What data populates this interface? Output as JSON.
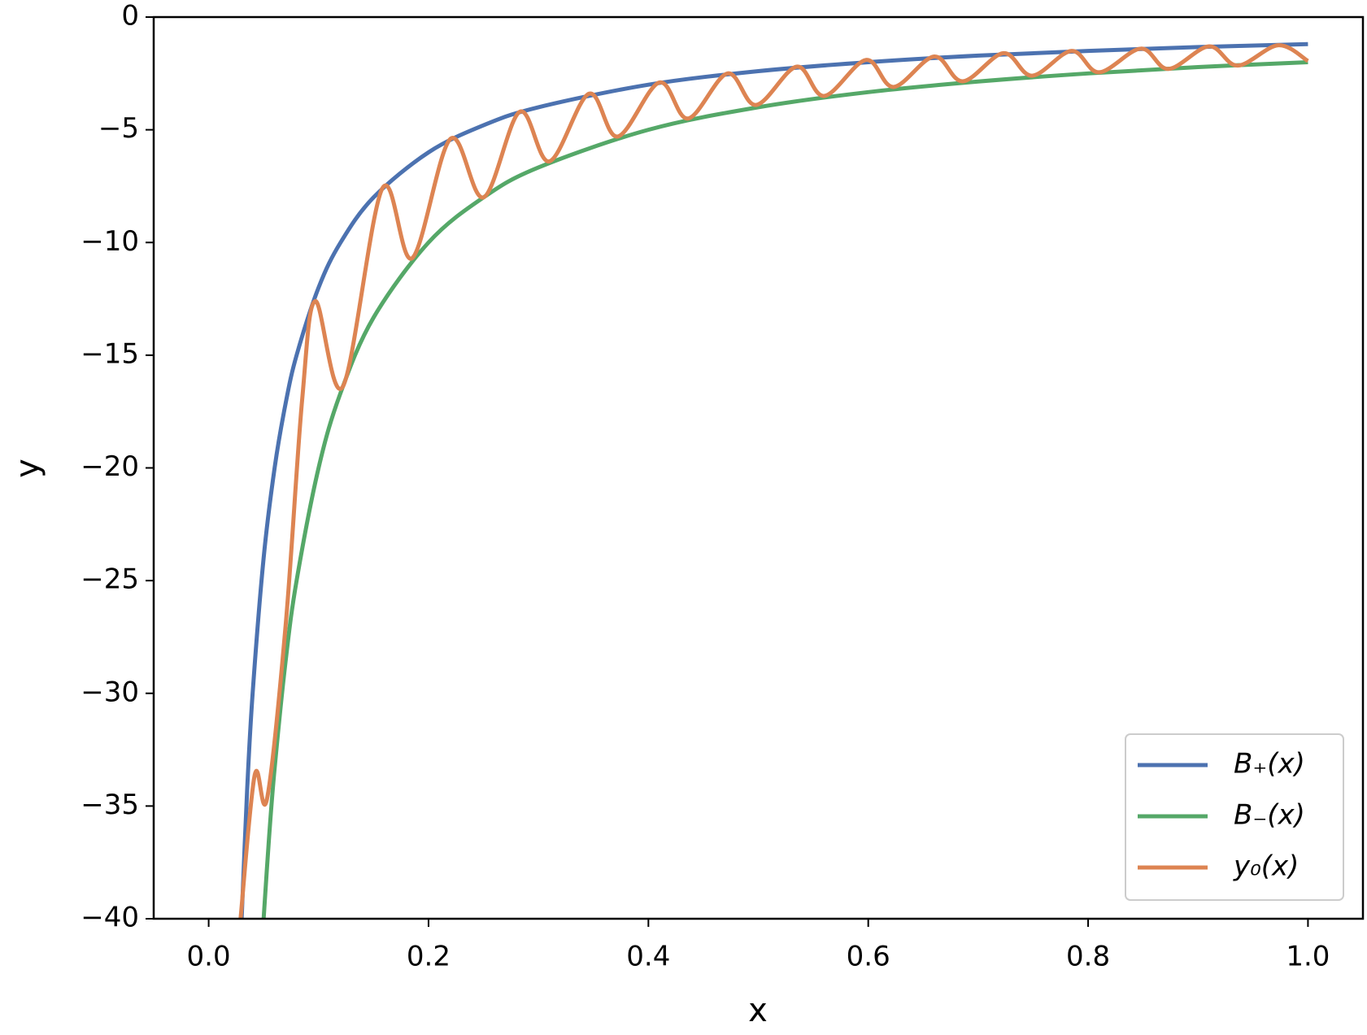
{
  "chart_data": {
    "type": "line",
    "xlabel": "x",
    "ylabel": "y",
    "xlim": [
      -0.05,
      1.05
    ],
    "ylim": [
      -40,
      0
    ],
    "xticks": [
      {
        "value": 0,
        "label": "0.0"
      },
      0.2,
      0.4,
      0.6,
      0.8,
      {
        "value": 1,
        "label": "1.0"
      }
    ],
    "yticks": [
      {
        "value": -40,
        "label": "−40"
      },
      {
        "value": -35,
        "label": "−35"
      },
      {
        "value": -30,
        "label": "−30"
      },
      {
        "value": -25,
        "label": "−25"
      },
      {
        "value": -20,
        "label": "−20"
      },
      {
        "value": -15,
        "label": "−15"
      },
      {
        "value": -10,
        "label": "−10"
      },
      {
        "value": -5,
        "label": "−5"
      },
      0
    ],
    "legend": "lower right",
    "series": [
      {
        "name": "B₊(x)",
        "color": "#4c72b0",
        "x": [
          0.03,
          0.035,
          0.04,
          0.05,
          0.06,
          0.07,
          0.08,
          0.1,
          0.12,
          0.15,
          0.2,
          0.25,
          0.3,
          0.4,
          0.5,
          0.6,
          0.7,
          0.8,
          0.9,
          1.0
        ],
        "values": [
          -40,
          -34.29,
          -30,
          -24,
          -20,
          -17.14,
          -15,
          -12,
          -10,
          -8,
          -6,
          -4.8,
          -4,
          -3,
          -2.4,
          -2,
          -1.71,
          -1.5,
          -1.33,
          -1.2
        ]
      },
      {
        "name": "B₋(x)",
        "color": "#55a868",
        "x": [
          0.05,
          0.055,
          0.06,
          0.07,
          0.08,
          0.1,
          0.12,
          0.15,
          0.2,
          0.25,
          0.3,
          0.4,
          0.5,
          0.6,
          0.7,
          0.8,
          0.9,
          1.0
        ],
        "values": [
          -40,
          -36.36,
          -33.33,
          -28.57,
          -25,
          -20,
          -16.67,
          -13.33,
          -10,
          -8,
          -6.67,
          -5,
          -4,
          -3.33,
          -2.86,
          -2.5,
          -2.22,
          -2
        ]
      },
      {
        "name": "y₀(x)",
        "color": "#dd8452",
        "x": [
          0.029,
          0.042,
          0.053,
          0.07,
          0.085,
          0.097,
          0.122,
          0.158,
          0.185,
          0.22,
          0.25,
          0.283,
          0.31,
          0.346,
          0.372,
          0.41,
          0.436,
          0.472,
          0.498,
          0.535,
          0.56,
          0.598,
          0.623,
          0.66,
          0.686,
          0.723,
          0.749,
          0.785,
          0.81,
          0.848,
          0.873,
          0.91,
          0.936,
          0.973,
          1.0
        ],
        "values": [
          -40,
          -33.6,
          -34.7,
          -27,
          -17,
          -12.6,
          -16.4,
          -7.6,
          -10.7,
          -5.4,
          -8.0,
          -4.2,
          -6.4,
          -3.4,
          -5.3,
          -2.9,
          -4.5,
          -2.5,
          -3.9,
          -2.2,
          -3.5,
          -1.9,
          -3.1,
          -1.75,
          -2.85,
          -1.6,
          -2.6,
          -1.5,
          -2.45,
          -1.4,
          -2.3,
          -1.3,
          -2.15,
          -1.25,
          -1.95
        ]
      }
    ]
  }
}
